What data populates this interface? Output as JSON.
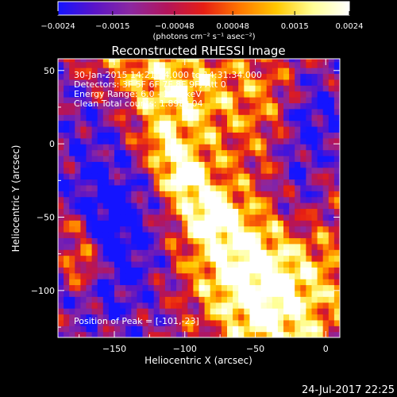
{
  "chart_data": {
    "type": "heatmap",
    "title": "Reconstructed RHESSI Image",
    "xlabel": "Heliocentric X (arcsec)",
    "ylabel": "Heliocentric Y (arcsec)",
    "xlim": [
      -190,
      10
    ],
    "ylim": [
      -132,
      58
    ],
    "xticks": [
      -150,
      -100,
      -50,
      0
    ],
    "yticks": [
      50,
      0,
      -50,
      -100
    ],
    "colorbar": {
      "label": "(photons cm⁻² s⁻¹ asec⁻²)",
      "range": [
        -0.0024,
        0.0024
      ],
      "tick_labels": [
        "−0.0024",
        "−0.0015",
        "−0.00048",
        "0.00048",
        "0.0015",
        "0.0024"
      ],
      "tick_values": [
        -0.0024,
        -0.0015,
        -0.00048,
        0.00048,
        0.0015,
        0.0024
      ],
      "colors": [
        "#1414ff",
        "#5a14c8",
        "#8c28a0",
        "#b4145a",
        "#e61e14",
        "#ff7800",
        "#ffc800",
        "#ffff96",
        "#ffffff"
      ]
    },
    "annotations": [
      "30-Jan-2015 14:21:34.000 to 14:31:34.000",
      "Detectors: 3F 5F 6F 7F 8F 9F, Att 0",
      "Energy Range: 6.0 - 12.0 keV",
      "Clean     Total counts: 1.89E+04"
    ],
    "peak_label": "Position of Peak = [-101,-23]",
    "peak": [
      -101,
      -23
    ],
    "timestamp": "24-Jul-2017 22:25"
  }
}
